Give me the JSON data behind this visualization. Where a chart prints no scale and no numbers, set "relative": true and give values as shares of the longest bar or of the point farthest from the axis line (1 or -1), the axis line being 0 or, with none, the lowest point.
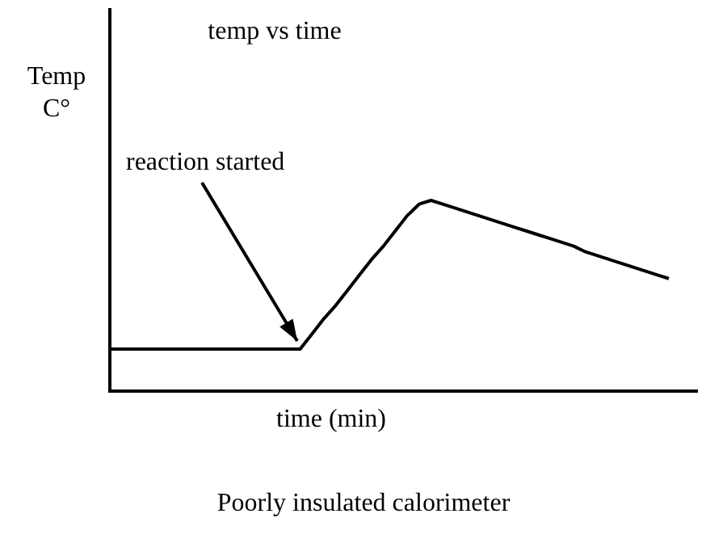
{
  "chart_data": {
    "type": "line",
    "relative": true,
    "title": "temp vs time",
    "xlabel": "time (min)",
    "ylabel": "Temp C°",
    "tick_labels": false,
    "grid": false,
    "legend": false,
    "marker": "none",
    "line_style": "solid",
    "categories": [
      null,
      null,
      null,
      null,
      null,
      null,
      null,
      null,
      null,
      null,
      null,
      null,
      null,
      null,
      null,
      null,
      null,
      null,
      null,
      null,
      null,
      null,
      null,
      null,
      null,
      null,
      null,
      null,
      null,
      null,
      null,
      null,
      null,
      null,
      null,
      null,
      null,
      null,
      null,
      null,
      null,
      null,
      null,
      null,
      null,
      null,
      null,
      null
    ],
    "series": [
      {
        "color": "#000000",
        "values": [
          0.22,
          0.22,
          0.22,
          0.22,
          0.22,
          0.22,
          0.22,
          0.22,
          0.22,
          0.22,
          0.22,
          0.22,
          0.22,
          0.22,
          0.22,
          0.22,
          0.22,
          0.3,
          0.38,
          0.45,
          0.53,
          0.61,
          0.69,
          0.76,
          0.84,
          0.92,
          0.98,
          1.0,
          0.98,
          0.96,
          0.94,
          0.92,
          0.9,
          0.88,
          0.86,
          0.84,
          0.82,
          0.8,
          0.78,
          0.76,
          0.73,
          0.71,
          0.69,
          0.67,
          0.65,
          0.63,
          0.61,
          0.59
        ]
      }
    ],
    "annotations": [
      "reaction started",
      "Poorly insulated calorimeter"
    ]
  }
}
